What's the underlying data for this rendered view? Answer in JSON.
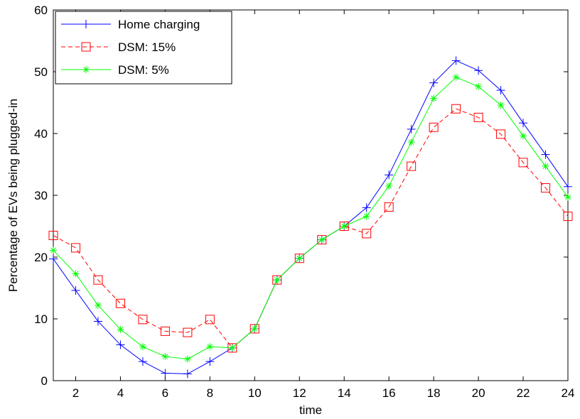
{
  "chart_data": {
    "type": "line",
    "title": "",
    "xlabel": "time",
    "ylabel": "Percentage of EVs being plugged-in",
    "xlim": [
      1,
      24
    ],
    "ylim": [
      0,
      60
    ],
    "xticks": [
      2,
      4,
      6,
      8,
      10,
      12,
      14,
      16,
      18,
      20,
      22,
      24
    ],
    "yticks": [
      0,
      10,
      20,
      30,
      40,
      50,
      60
    ],
    "grid": false,
    "legend_position": "top-left",
    "x": [
      1,
      2,
      3,
      4,
      5,
      6,
      7,
      8,
      9,
      10,
      11,
      12,
      13,
      14,
      15,
      16,
      17,
      18,
      19,
      20,
      21,
      22,
      23,
      24
    ],
    "series": [
      {
        "name": "Home charging",
        "color": "#0000ff",
        "line_style": "solid",
        "marker": "plus",
        "values": [
          19.7,
          14.6,
          9.6,
          5.8,
          3.1,
          1.2,
          1.1,
          3.1,
          5.3,
          8.4,
          16.3,
          19.8,
          22.8,
          25.0,
          28.0,
          33.3,
          40.7,
          48.2,
          51.8,
          50.2,
          47.0,
          41.7,
          36.6,
          31.4
        ]
      },
      {
        "name": "DSM: 15%",
        "color": "#ff0000",
        "line_style": "dashed",
        "marker": "square",
        "values": [
          23.5,
          21.5,
          16.3,
          12.5,
          9.9,
          8.0,
          7.8,
          9.9,
          5.3,
          8.4,
          16.3,
          19.8,
          22.8,
          25.0,
          23.8,
          28.1,
          34.7,
          41.0,
          44.0,
          42.6,
          39.9,
          35.3,
          31.2,
          26.6
        ]
      },
      {
        "name": "DSM: 5%",
        "color": "#00ff00",
        "line_style": "solid",
        "marker": "asterisk",
        "values": [
          21.1,
          17.3,
          12.2,
          8.3,
          5.5,
          3.9,
          3.5,
          5.5,
          5.3,
          8.4,
          16.3,
          19.8,
          22.8,
          25.0,
          26.6,
          31.5,
          38.6,
          45.7,
          49.1,
          47.6,
          44.6,
          39.6,
          34.7,
          29.7
        ]
      }
    ]
  }
}
